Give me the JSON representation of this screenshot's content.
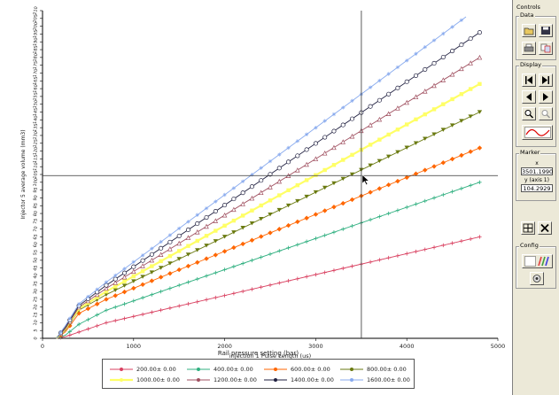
{
  "controls": {
    "title": "Controls",
    "groups": {
      "data": "Data",
      "display": "Display",
      "marker": "Marker",
      "config": "Config"
    },
    "marker": {
      "x_label": "x",
      "x_value": "3501.1990",
      "y_label": "y (axis 1)",
      "y_value": "104.2929"
    }
  },
  "chart_data": {
    "type": "line",
    "xlabel": "injection 1 Pulse Length (us)",
    "ylabel": "Injector 5 average volume (mm3)",
    "xlim": [
      0,
      5000
    ],
    "ylim": [
      0,
      210
    ],
    "x_ticks": [
      "0",
      "1000",
      "2000",
      "3000",
      "4000",
      "5000"
    ],
    "y_ticks": [
      "0",
      "5",
      "10",
      "15",
      "20",
      "25",
      "30",
      "35",
      "40",
      "45",
      "50",
      "55",
      "60",
      "65",
      "70",
      "75",
      "80",
      "85",
      "90",
      "95",
      "100",
      "105",
      "110",
      "115",
      "120",
      "125",
      "130",
      "135",
      "140",
      "145",
      "150",
      "155",
      "160",
      "165",
      "170",
      "175",
      "180",
      "185",
      "190",
      "195",
      "200",
      "205",
      "210"
    ],
    "legend_title": "Rail pressure setting (bar)",
    "grid": false,
    "cursor": {
      "x": 3501.199,
      "y": 104.2929
    },
    "series": [
      {
        "name": "200.00± 0.00",
        "color": "#d94060",
        "marker": "plus",
        "x": [
          150,
          250,
          400,
          700,
          4800
        ],
        "y": [
          0,
          1,
          4,
          10,
          65
        ]
      },
      {
        "name": "400.00± 0.00",
        "color": "#30b080",
        "marker": "plus",
        "x": [
          150,
          250,
          400,
          700,
          4800
        ],
        "y": [
          0,
          2,
          9,
          18,
          100
        ]
      },
      {
        "name": "600.00± 0.00",
        "color": "#ff6600",
        "marker": "diamond",
        "x": [
          150,
          250,
          400,
          700,
          4800
        ],
        "y": [
          0,
          4,
          16,
          25,
          122
        ]
      },
      {
        "name": "800.00± 0.00",
        "color": "#6a7a10",
        "marker": "triangle-down",
        "x": [
          150,
          250,
          400,
          700,
          4800
        ],
        "y": [
          0,
          5,
          18,
          28,
          145
        ]
      },
      {
        "name": "1000.00± 0.00",
        "color": "#ffff66",
        "marker": "square",
        "x": [
          150,
          250,
          400,
          700,
          4800
        ],
        "y": [
          0,
          6,
          19,
          30,
          163
        ]
      },
      {
        "name": "1200.00± 0.00",
        "color": "#a05060",
        "marker": "triangle-up",
        "x": [
          150,
          250,
          400,
          700,
          4800
        ],
        "y": [
          0,
          6,
          20,
          32,
          180
        ]
      },
      {
        "name": "1400.00± 0.00",
        "color": "#202040",
        "marker": "circle",
        "x": [
          150,
          250,
          400,
          700,
          4800
        ],
        "y": [
          0,
          7,
          21,
          34,
          196
        ]
      },
      {
        "name": "1600.00± 0.00",
        "color": "#88aaee",
        "marker": "star",
        "x": [
          150,
          250,
          400,
          700,
          4650
        ],
        "y": [
          0,
          8,
          22,
          36,
          206
        ]
      }
    ]
  }
}
